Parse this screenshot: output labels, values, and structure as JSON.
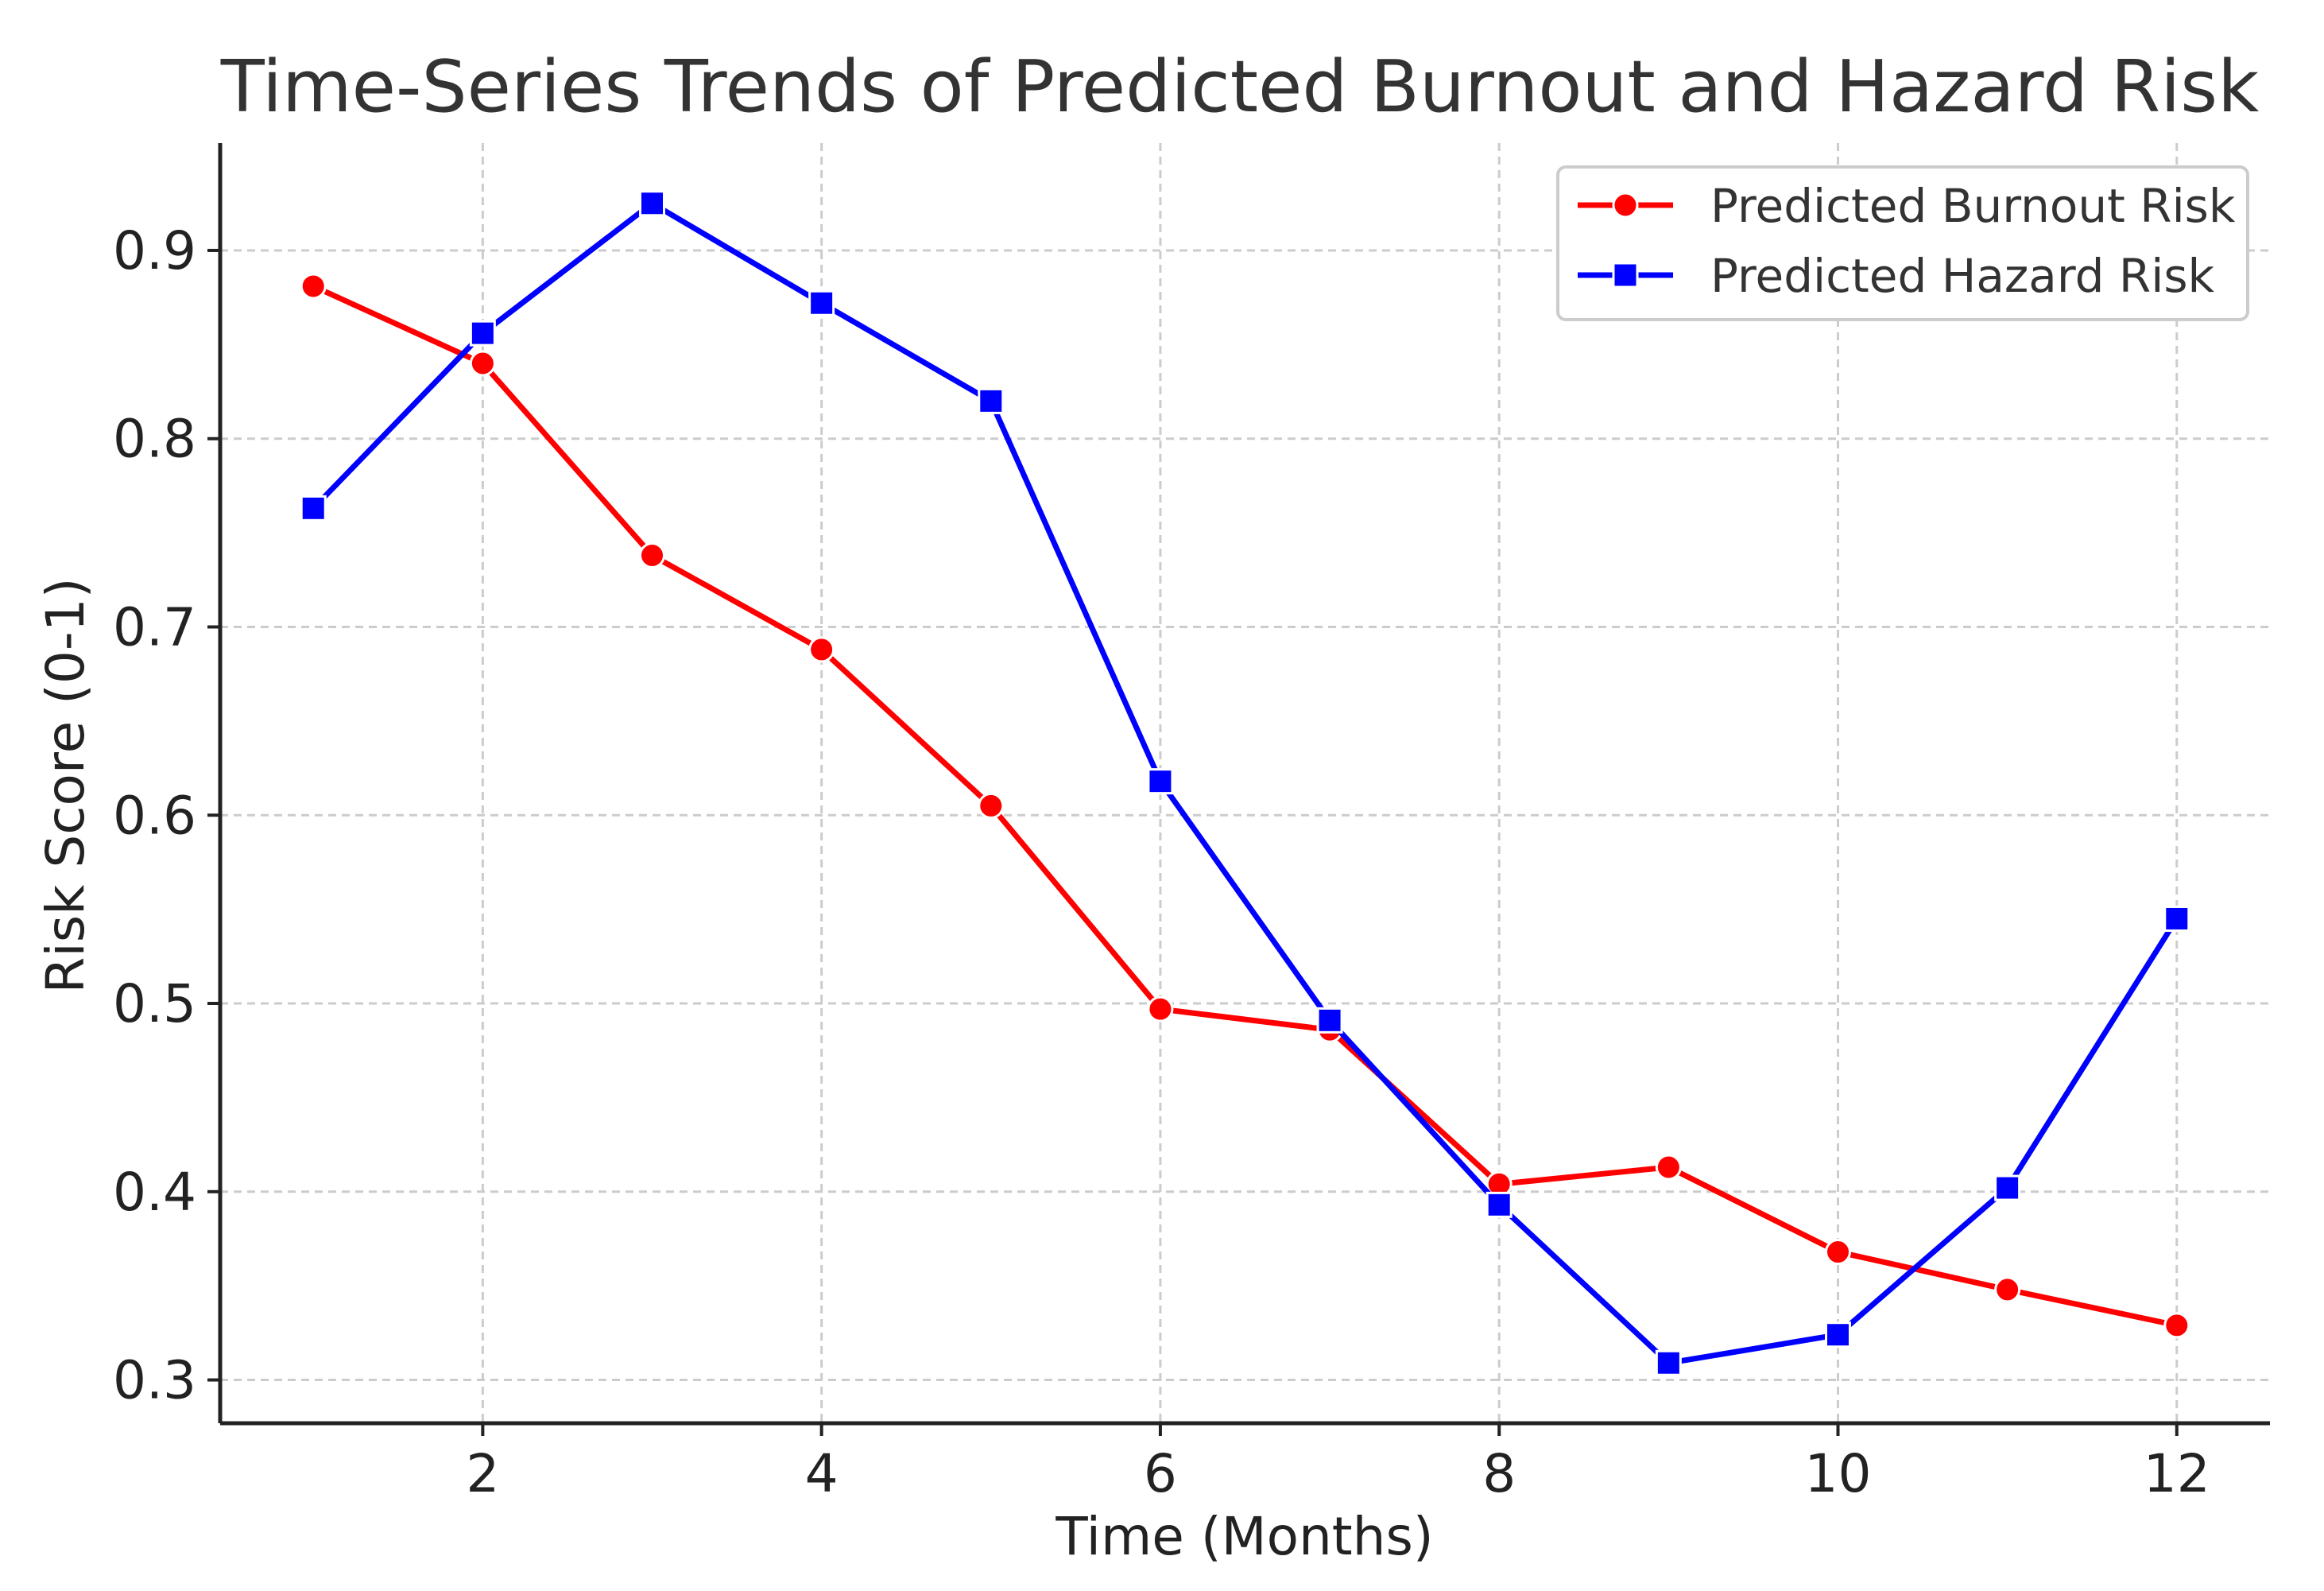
{
  "chart_data": {
    "type": "line",
    "title": "Time-Series Trends of Predicted Burnout and Hazard Risk",
    "xlabel": "Time (Months)",
    "ylabel": "Risk Score (0-1)",
    "x": [
      1,
      2,
      3,
      4,
      5,
      6,
      7,
      8,
      9,
      10,
      11,
      12
    ],
    "xlim": [
      0.45,
      12.55
    ],
    "ylim": [
      0.277,
      0.957
    ],
    "xticks": [
      2,
      4,
      6,
      8,
      10,
      12
    ],
    "yticks": [
      0.3,
      0.4,
      0.5,
      0.6,
      0.7,
      0.8,
      0.9
    ],
    "xtick_labels": [
      "2",
      "4",
      "6",
      "8",
      "10",
      "12"
    ],
    "ytick_labels": [
      "0.3",
      "0.4",
      "0.5",
      "0.6",
      "0.7",
      "0.8",
      "0.9"
    ],
    "grid": true,
    "legend_position": "top-right",
    "series": [
      {
        "name": "Predicted Burnout Risk",
        "color": "#ff0000",
        "marker": "circle",
        "values": [
          0.881,
          0.84,
          0.738,
          0.688,
          0.605,
          0.497,
          0.486,
          0.404,
          0.413,
          0.368,
          0.348,
          0.329
        ]
      },
      {
        "name": "Predicted Hazard Risk",
        "color": "#0000ff",
        "marker": "square",
        "values": [
          0.763,
          0.856,
          0.925,
          0.872,
          0.82,
          0.618,
          0.491,
          0.393,
          0.309,
          0.324,
          0.402,
          0.545
        ]
      }
    ]
  }
}
